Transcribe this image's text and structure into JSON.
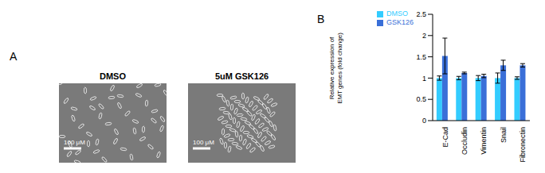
{
  "panel_a": {
    "label": "A",
    "images": [
      {
        "title": "DMSO",
        "scale_bar": "100 μM"
      },
      {
        "title": "5uM GSK126",
        "scale_bar": "100 μM"
      }
    ]
  },
  "panel_b": {
    "label": "B"
  },
  "chart_data": {
    "type": "bar",
    "y_label": "Relative expression of EMT genes (fold change)",
    "categories": [
      "E-Cad",
      "Occludin",
      "Vimentin",
      "Snail",
      "Fibronectin"
    ],
    "series": [
      {
        "name": "DMSO",
        "color": "#33ccff",
        "values": [
          1,
          1,
          1,
          1,
          1
        ],
        "errors": [
          0.05,
          0.04,
          0.06,
          0.12,
          0.03
        ]
      },
      {
        "name": "GSK126",
        "color": "#3a6fd8",
        "values": [
          1.52,
          1.12,
          1.05,
          1.3,
          1.3
        ],
        "errors": [
          0.42,
          0.02,
          0.04,
          0.12,
          0.04
        ]
      }
    ],
    "ylim": [
      0,
      2.5
    ],
    "yticks": [
      0,
      0.5,
      1,
      1.5,
      2,
      2.5
    ],
    "grid": false,
    "legend": "top-left"
  }
}
